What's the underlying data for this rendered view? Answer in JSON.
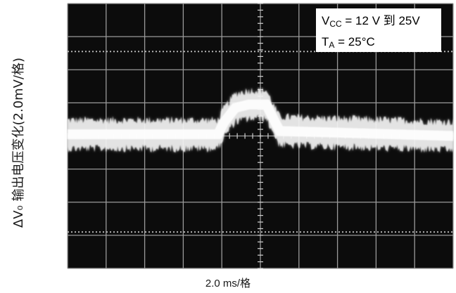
{
  "chart_data": {
    "type": "oscilloscope",
    "ylabel": "ΔV₀ 输出电压变化(2.0mV/格)",
    "xlabel": "2.0 ms/格",
    "annotation": {
      "vcc_label": "V",
      "vcc_sub": "CC",
      "vcc_value": " = 12 V 到 25V",
      "ta_label": "T",
      "ta_sub": "A",
      "ta_value": " = 25°C"
    },
    "x_divisions": 10,
    "y_divisions": 8,
    "x_per_div_ms": 2.0,
    "y_per_div_mV": 2.0,
    "trace": {
      "x_div": [
        0,
        3.9,
        4.05,
        4.35,
        4.7,
        5.15,
        5.5,
        10
      ],
      "center_div": [
        0.05,
        0.05,
        0.4,
        0.85,
        0.95,
        0.95,
        0.15,
        0.0
      ],
      "noise_pp_div": 1.1
    }
  }
}
